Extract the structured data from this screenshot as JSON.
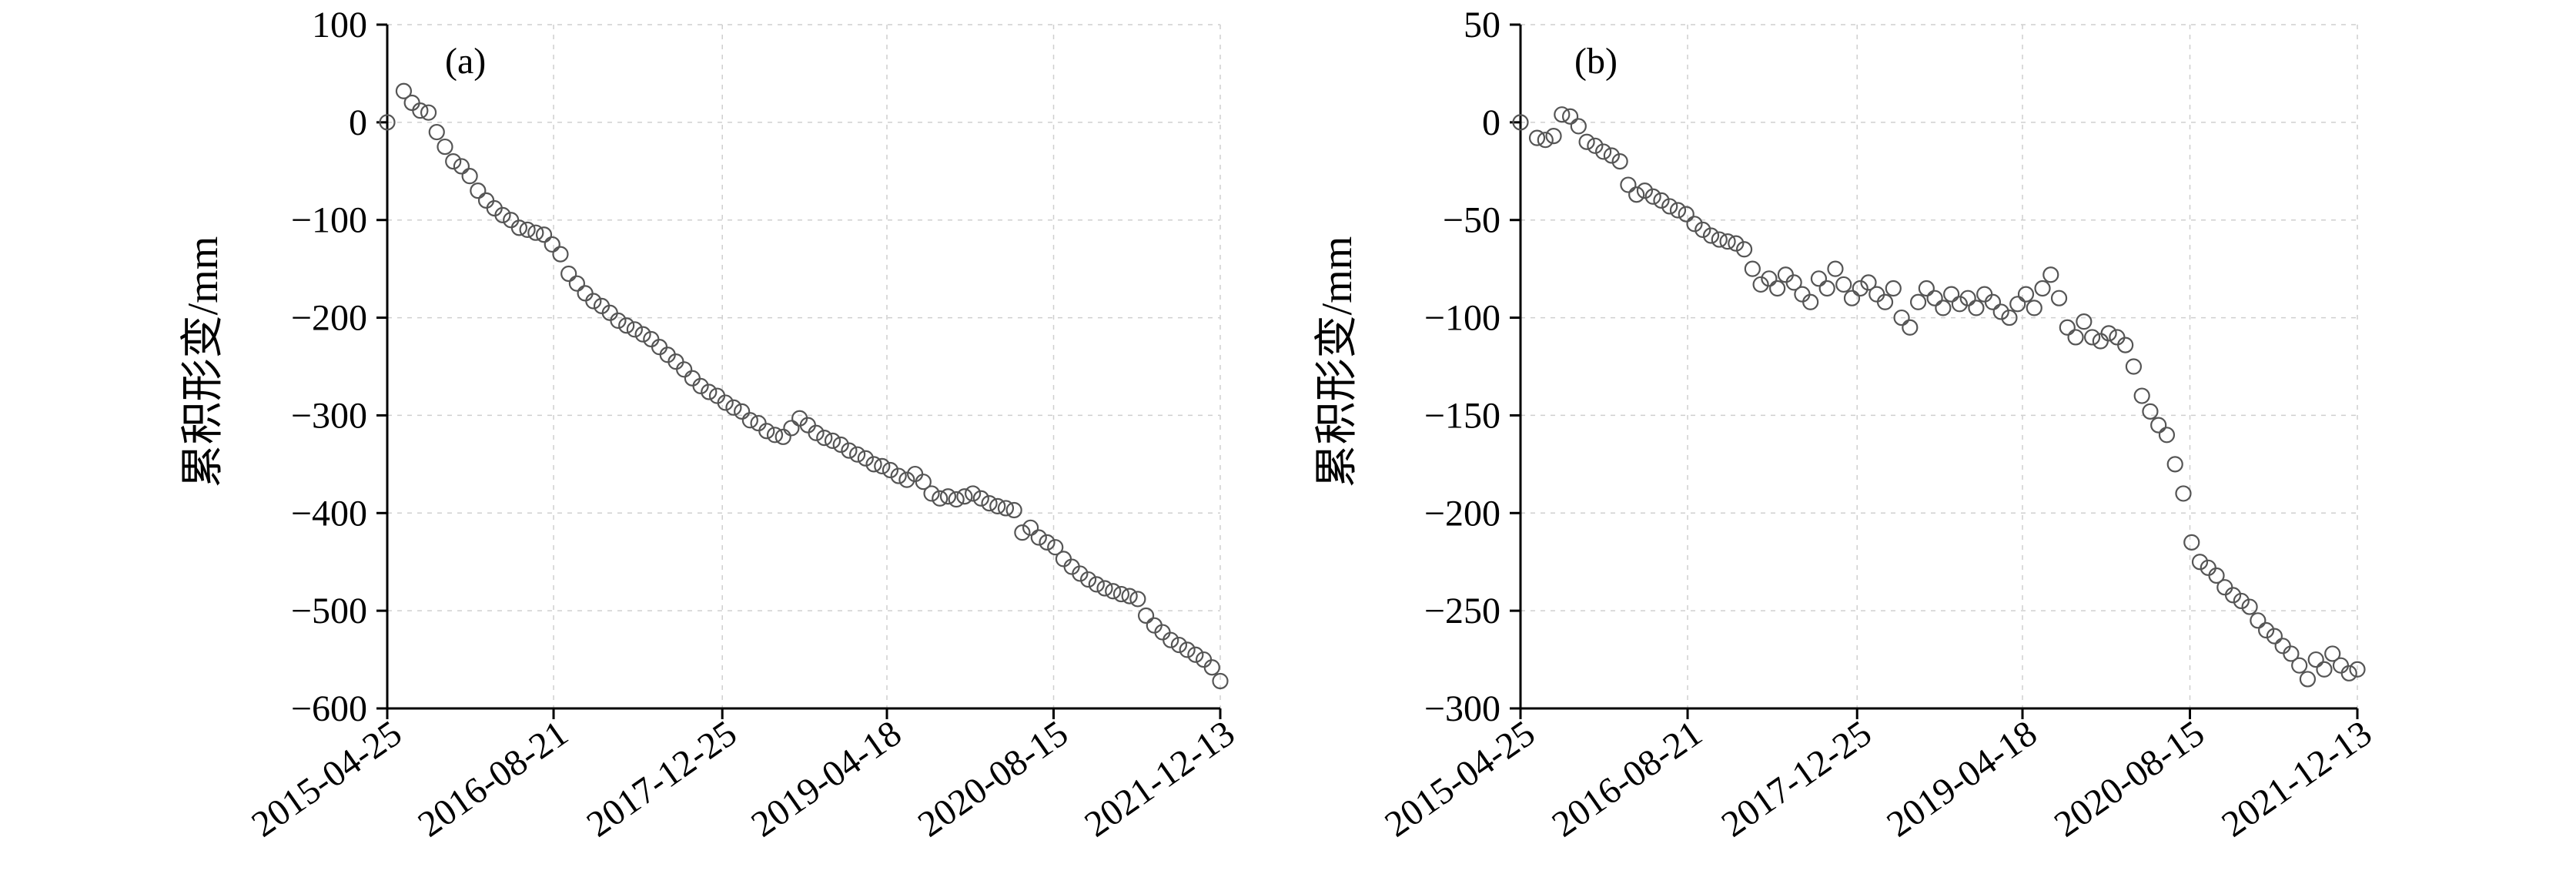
{
  "chart_data": [
    {
      "type": "scatter",
      "panel_label": "(a)",
      "title": "",
      "xlabel": "",
      "ylabel": "累积形变/mm",
      "x_tick_labels": [
        "2015-04-25",
        "2016-08-21",
        "2017-12-25",
        "2019-04-18",
        "2020-08-15",
        "2021-12-13"
      ],
      "xlim": [
        "2015-04-25",
        "2021-12-13"
      ],
      "y_ticks": [
        100,
        0,
        -100,
        -200,
        -300,
        -400,
        -500,
        -600
      ],
      "y_tick_labels": [
        "100",
        "0",
        "−100",
        "−200",
        "−300",
        "−400",
        "−500",
        "−600"
      ],
      "ylim": [
        -600,
        100
      ],
      "grid": true,
      "marker": "hollow-circle",
      "series": [
        {
          "points": [
            [
              "2015-04-25",
              0
            ],
            [
              "2015-06-12",
              32
            ],
            [
              "2015-07-06",
              20
            ],
            [
              "2015-07-30",
              12
            ],
            [
              "2015-08-23",
              10
            ],
            [
              "2015-09-16",
              -10
            ],
            [
              "2015-10-10",
              -25
            ],
            [
              "2015-11-03",
              -40
            ],
            [
              "2015-11-27",
              -45
            ],
            [
              "2015-12-21",
              -55
            ],
            [
              "2016-01-14",
              -70
            ],
            [
              "2016-02-07",
              -80
            ],
            [
              "2016-03-02",
              -88
            ],
            [
              "2016-03-26",
              -95
            ],
            [
              "2016-04-19",
              -100
            ],
            [
              "2016-05-13",
              -108
            ],
            [
              "2016-06-06",
              -110
            ],
            [
              "2016-06-30",
              -113
            ],
            [
              "2016-07-24",
              -115
            ],
            [
              "2016-08-17",
              -125
            ],
            [
              "2016-09-10",
              -135
            ],
            [
              "2016-10-04",
              -155
            ],
            [
              "2016-10-28",
              -165
            ],
            [
              "2016-11-21",
              -175
            ],
            [
              "2016-12-15",
              -183
            ],
            [
              "2017-01-08",
              -188
            ],
            [
              "2017-02-01",
              -195
            ],
            [
              "2017-02-25",
              -203
            ],
            [
              "2017-03-21",
              -208
            ],
            [
              "2017-04-14",
              -212
            ],
            [
              "2017-05-08",
              -217
            ],
            [
              "2017-06-01",
              -222
            ],
            [
              "2017-06-25",
              -230
            ],
            [
              "2017-07-19",
              -238
            ],
            [
              "2017-08-12",
              -245
            ],
            [
              "2017-09-05",
              -253
            ],
            [
              "2017-09-29",
              -262
            ],
            [
              "2017-10-23",
              -270
            ],
            [
              "2017-11-16",
              -276
            ],
            [
              "2017-12-10",
              -280
            ],
            [
              "2018-01-03",
              -287
            ],
            [
              "2018-01-27",
              -292
            ],
            [
              "2018-02-20",
              -296
            ],
            [
              "2018-03-16",
              -305
            ],
            [
              "2018-04-09",
              -308
            ],
            [
              "2018-05-03",
              -316
            ],
            [
              "2018-05-27",
              -320
            ],
            [
              "2018-06-20",
              -322
            ],
            [
              "2018-07-14",
              -313
            ],
            [
              "2018-08-07",
              -303
            ],
            [
              "2018-08-31",
              -310
            ],
            [
              "2018-09-24",
              -318
            ],
            [
              "2018-10-18",
              -323
            ],
            [
              "2018-11-11",
              -326
            ],
            [
              "2018-12-05",
              -330
            ],
            [
              "2018-12-29",
              -336
            ],
            [
              "2019-01-22",
              -340
            ],
            [
              "2019-02-15",
              -344
            ],
            [
              "2019-03-11",
              -350
            ],
            [
              "2019-04-04",
              -352
            ],
            [
              "2019-04-28",
              -356
            ],
            [
              "2019-05-22",
              -362
            ],
            [
              "2019-06-15",
              -366
            ],
            [
              "2019-07-09",
              -360
            ],
            [
              "2019-08-02",
              -368
            ],
            [
              "2019-08-26",
              -380
            ],
            [
              "2019-09-19",
              -385
            ],
            [
              "2019-10-13",
              -383
            ],
            [
              "2019-11-06",
              -386
            ],
            [
              "2019-11-30",
              -383
            ],
            [
              "2019-12-24",
              -380
            ],
            [
              "2020-01-17",
              -385
            ],
            [
              "2020-02-10",
              -390
            ],
            [
              "2020-03-05",
              -393
            ],
            [
              "2020-03-29",
              -395
            ],
            [
              "2020-04-22",
              -397
            ],
            [
              "2020-05-16",
              -420
            ],
            [
              "2020-06-09",
              -415
            ],
            [
              "2020-07-03",
              -425
            ],
            [
              "2020-07-27",
              -430
            ],
            [
              "2020-08-20",
              -435
            ],
            [
              "2020-09-13",
              -447
            ],
            [
              "2020-10-07",
              -455
            ],
            [
              "2020-10-31",
              -462
            ],
            [
              "2020-11-24",
              -468
            ],
            [
              "2020-12-18",
              -473
            ],
            [
              "2021-01-11",
              -477
            ],
            [
              "2021-02-04",
              -480
            ],
            [
              "2021-02-28",
              -483
            ],
            [
              "2021-03-24",
              -485
            ],
            [
              "2021-04-17",
              -488
            ],
            [
              "2021-05-11",
              -505
            ],
            [
              "2021-06-04",
              -515
            ],
            [
              "2021-06-28",
              -522
            ],
            [
              "2021-07-22",
              -530
            ],
            [
              "2021-08-15",
              -535
            ],
            [
              "2021-09-08",
              -540
            ],
            [
              "2021-10-02",
              -545
            ],
            [
              "2021-10-26",
              -550
            ],
            [
              "2021-11-19",
              -558
            ],
            [
              "2021-12-13",
              -572
            ]
          ]
        }
      ]
    },
    {
      "type": "scatter",
      "panel_label": "(b)",
      "title": "",
      "xlabel": "",
      "ylabel": "累积形变/mm",
      "x_tick_labels": [
        "2015-04-25",
        "2016-08-21",
        "2017-12-25",
        "2019-04-18",
        "2020-08-15",
        "2021-12-13"
      ],
      "xlim": [
        "2015-04-25",
        "2021-12-13"
      ],
      "y_ticks": [
        50,
        0,
        -50,
        -100,
        -150,
        -200,
        -250,
        -300
      ],
      "y_tick_labels": [
        "50",
        "0",
        "−50",
        "−100",
        "−150",
        "−200",
        "−250",
        "−300"
      ],
      "ylim": [
        -300,
        50
      ],
      "grid": true,
      "marker": "hollow-circle",
      "series": [
        {
          "points": [
            [
              "2015-04-25",
              0
            ],
            [
              "2015-06-12",
              -8
            ],
            [
              "2015-07-06",
              -9
            ],
            [
              "2015-07-30",
              -7
            ],
            [
              "2015-08-23",
              4
            ],
            [
              "2015-09-16",
              3
            ],
            [
              "2015-10-10",
              -2
            ],
            [
              "2015-11-03",
              -10
            ],
            [
              "2015-11-27",
              -12
            ],
            [
              "2015-12-21",
              -15
            ],
            [
              "2016-01-14",
              -17
            ],
            [
              "2016-02-07",
              -20
            ],
            [
              "2016-03-02",
              -32
            ],
            [
              "2016-03-26",
              -37
            ],
            [
              "2016-04-19",
              -35
            ],
            [
              "2016-05-13",
              -38
            ],
            [
              "2016-06-06",
              -40
            ],
            [
              "2016-06-30",
              -43
            ],
            [
              "2016-07-24",
              -45
            ],
            [
              "2016-08-17",
              -47
            ],
            [
              "2016-09-10",
              -52
            ],
            [
              "2016-10-04",
              -55
            ],
            [
              "2016-10-28",
              -58
            ],
            [
              "2016-11-21",
              -60
            ],
            [
              "2016-12-15",
              -61
            ],
            [
              "2017-01-08",
              -62
            ],
            [
              "2017-02-01",
              -65
            ],
            [
              "2017-02-25",
              -75
            ],
            [
              "2017-03-21",
              -83
            ],
            [
              "2017-04-14",
              -80
            ],
            [
              "2017-05-08",
              -85
            ],
            [
              "2017-06-01",
              -78
            ],
            [
              "2017-06-25",
              -82
            ],
            [
              "2017-07-19",
              -88
            ],
            [
              "2017-08-12",
              -92
            ],
            [
              "2017-09-05",
              -80
            ],
            [
              "2017-09-29",
              -85
            ],
            [
              "2017-10-23",
              -75
            ],
            [
              "2017-11-16",
              -83
            ],
            [
              "2017-12-10",
              -90
            ],
            [
              "2018-01-03",
              -85
            ],
            [
              "2018-01-27",
              -82
            ],
            [
              "2018-02-20",
              -88
            ],
            [
              "2018-03-16",
              -92
            ],
            [
              "2018-04-09",
              -85
            ],
            [
              "2018-05-03",
              -100
            ],
            [
              "2018-05-27",
              -105
            ],
            [
              "2018-06-20",
              -92
            ],
            [
              "2018-07-14",
              -85
            ],
            [
              "2018-08-07",
              -90
            ],
            [
              "2018-08-31",
              -95
            ],
            [
              "2018-09-24",
              -88
            ],
            [
              "2018-10-18",
              -93
            ],
            [
              "2018-11-11",
              -90
            ],
            [
              "2018-12-05",
              -95
            ],
            [
              "2018-12-29",
              -88
            ],
            [
              "2019-01-22",
              -92
            ],
            [
              "2019-02-15",
              -97
            ],
            [
              "2019-03-11",
              -100
            ],
            [
              "2019-04-04",
              -93
            ],
            [
              "2019-04-28",
              -88
            ],
            [
              "2019-05-22",
              -95
            ],
            [
              "2019-06-15",
              -85
            ],
            [
              "2019-07-09",
              -78
            ],
            [
              "2019-08-02",
              -90
            ],
            [
              "2019-08-26",
              -105
            ],
            [
              "2019-09-19",
              -110
            ],
            [
              "2019-10-13",
              -102
            ],
            [
              "2019-11-06",
              -110
            ],
            [
              "2019-11-30",
              -112
            ],
            [
              "2019-12-24",
              -108
            ],
            [
              "2020-01-17",
              -110
            ],
            [
              "2020-02-10",
              -114
            ],
            [
              "2020-03-05",
              -125
            ],
            [
              "2020-03-29",
              -140
            ],
            [
              "2020-04-22",
              -148
            ],
            [
              "2020-05-16",
              -155
            ],
            [
              "2020-06-09",
              -160
            ],
            [
              "2020-07-03",
              -175
            ],
            [
              "2020-07-27",
              -190
            ],
            [
              "2020-08-20",
              -215
            ],
            [
              "2020-09-13",
              -225
            ],
            [
              "2020-10-07",
              -228
            ],
            [
              "2020-10-31",
              -232
            ],
            [
              "2020-11-24",
              -238
            ],
            [
              "2020-12-18",
              -242
            ],
            [
              "2021-01-11",
              -245
            ],
            [
              "2021-02-04",
              -248
            ],
            [
              "2021-02-28",
              -255
            ],
            [
              "2021-03-24",
              -260
            ],
            [
              "2021-04-17",
              -263
            ],
            [
              "2021-05-11",
              -268
            ],
            [
              "2021-06-04",
              -272
            ],
            [
              "2021-06-28",
              -278
            ],
            [
              "2021-07-22",
              -285
            ],
            [
              "2021-08-15",
              -275
            ],
            [
              "2021-09-08",
              -280
            ],
            [
              "2021-10-02",
              -272
            ],
            [
              "2021-10-26",
              -278
            ],
            [
              "2021-11-19",
              -282
            ],
            [
              "2021-12-13",
              -280
            ]
          ]
        }
      ]
    }
  ]
}
